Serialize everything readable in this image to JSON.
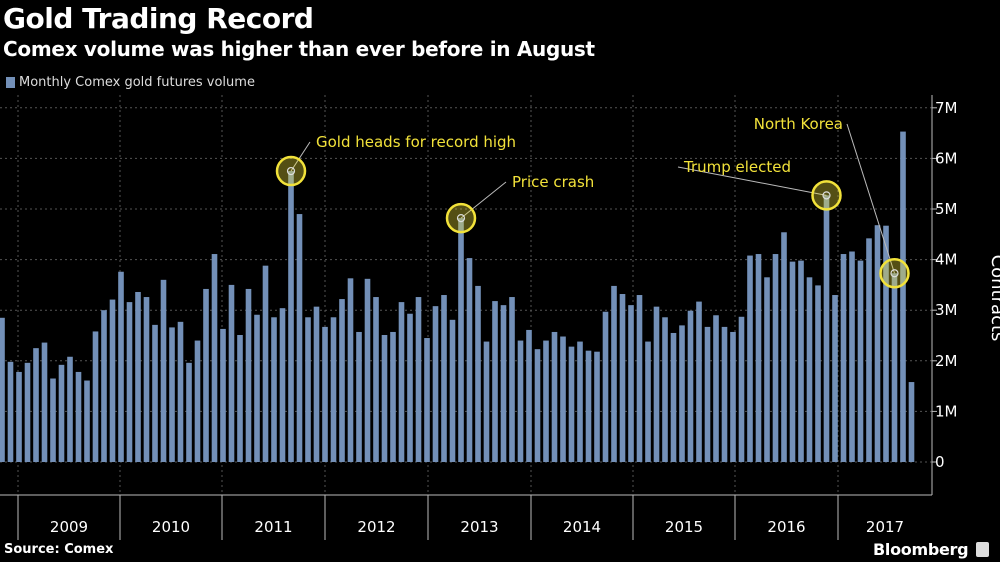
{
  "title": "Gold Trading Record",
  "subtitle": "Comex volume was higher than ever before in August",
  "source": "Source: Comex",
  "brand": "Bloomberg",
  "chart_data": {
    "type": "bar",
    "title": "Gold Trading Record",
    "subtitle": "Comex volume was higher than ever before in August",
    "ylabel": "Contracts",
    "legend": "top-left",
    "series": [
      {
        "name": "Monthly Comex gold futures volume",
        "color": "#7390b8",
        "unit": "M contracts",
        "values": [
          2.85,
          1.98,
          1.78,
          1.96,
          2.25,
          2.36,
          1.65,
          1.92,
          2.08,
          1.78,
          1.61,
          2.58,
          3.0,
          3.21,
          3.76,
          3.16,
          3.36,
          3.26,
          2.71,
          3.6,
          2.66,
          2.77,
          1.96,
          2.4,
          3.42,
          4.11,
          2.63,
          3.5,
          2.51,
          3.42,
          2.91,
          3.88,
          2.86,
          3.04,
          5.75,
          4.9,
          2.86,
          3.07,
          2.67,
          2.86,
          3.22,
          3.63,
          2.57,
          3.62,
          3.26,
          2.51,
          2.57,
          3.16,
          2.93,
          3.26,
          2.45,
          3.08,
          3.3,
          2.81,
          4.82,
          4.03,
          3.48,
          2.38,
          3.18,
          3.1,
          3.26,
          2.4,
          2.61,
          2.23,
          2.4,
          2.57,
          2.48,
          2.28,
          2.38,
          2.2,
          2.18,
          2.97,
          3.48,
          3.32,
          3.1,
          3.3,
          2.38,
          3.07,
          2.86,
          2.55,
          2.7,
          2.99,
          3.17,
          2.67,
          2.9,
          2.67,
          2.57,
          2.87,
          4.08,
          4.11,
          3.65,
          4.11,
          4.54,
          3.96,
          3.98,
          3.65,
          3.49,
          5.27,
          3.3,
          4.11,
          4.16,
          3.98,
          4.42,
          4.68,
          4.67,
          3.73,
          6.53,
          1.58
        ]
      }
    ],
    "x_tick_labels": [
      "2009",
      "2010",
      "2011",
      "2012",
      "2013",
      "2014",
      "2015",
      "2016",
      "2017"
    ],
    "y_ticks": [
      0,
      1,
      2,
      3,
      4,
      5,
      6,
      7
    ],
    "y_tick_labels": [
      "0",
      "1M",
      "2M",
      "3M",
      "4M",
      "5M",
      "6M",
      "7M"
    ],
    "ylim": [
      -0.6,
      7.2
    ],
    "grid": true,
    "annotations": [
      {
        "text": "Gold heads for record high",
        "bar_index": 34
      },
      {
        "text": "Price crash",
        "bar_index": 54
      },
      {
        "text": "Trump elected",
        "bar_index": 97
      },
      {
        "text": "North Korea",
        "bar_index": 105
      }
    ],
    "annotation_color": "#f2e23a"
  }
}
